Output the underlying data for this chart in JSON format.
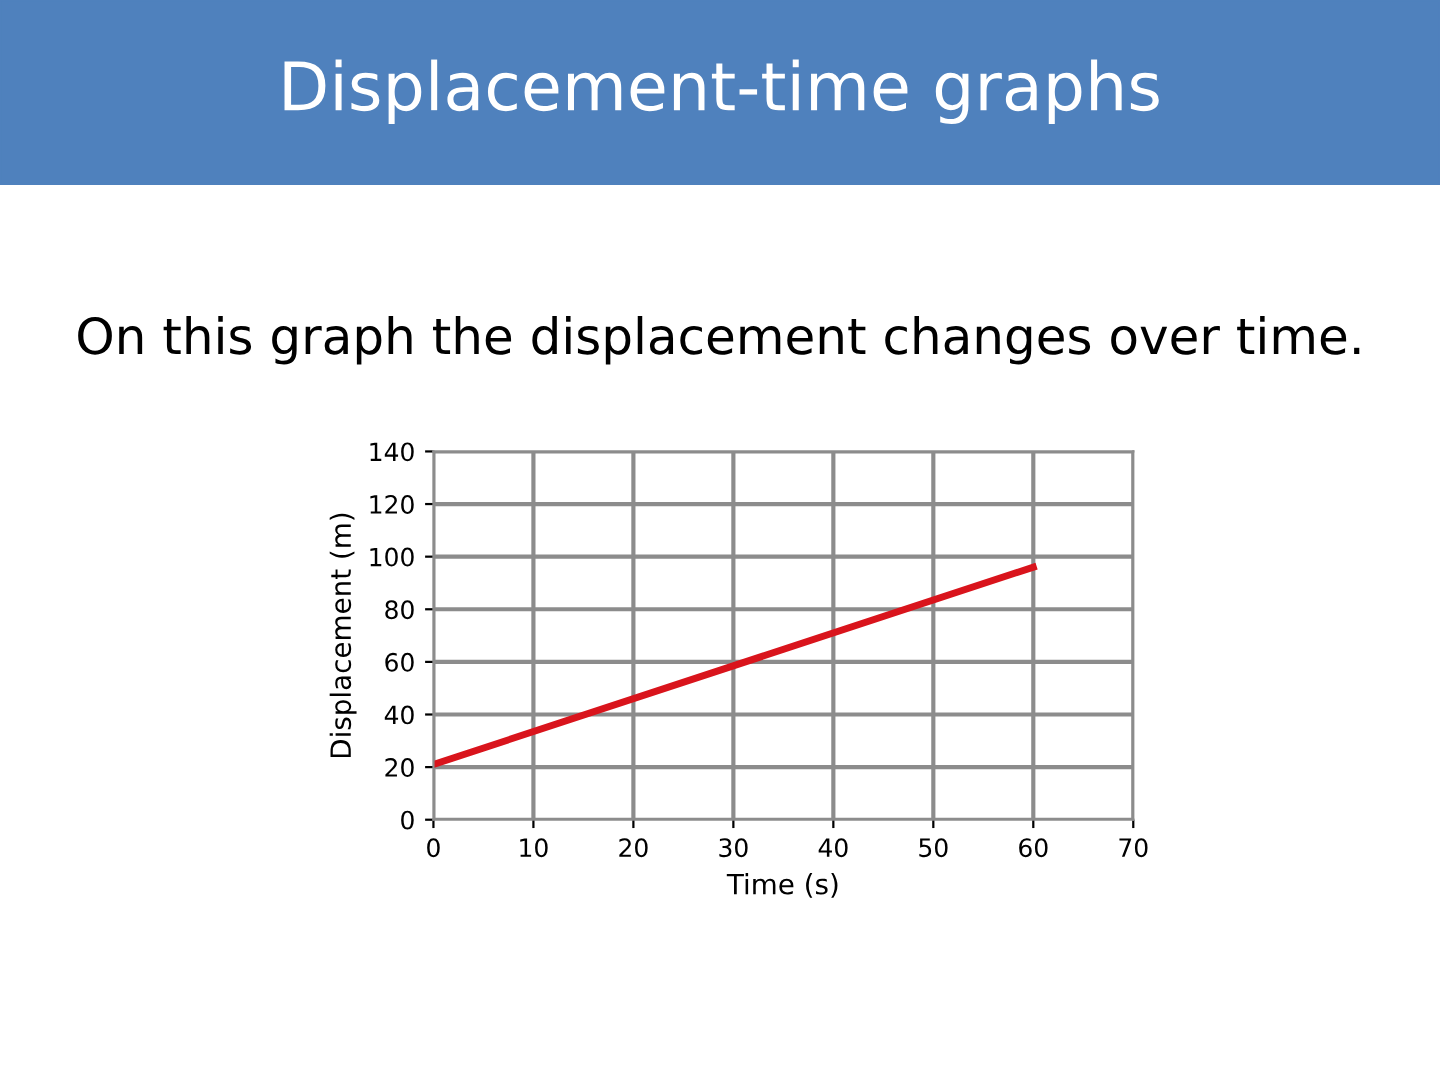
{
  "chart_data": {
    "type": "line",
    "title": "Displacement-time graphs",
    "subtitle": "On this graph the displacement changes over time.",
    "xlabel": "Time (s)",
    "ylabel": "Displacement (m)",
    "series": [
      {
        "color": "#d9141c",
        "x": [
          0,
          60
        ],
        "values": [
          21,
          96
        ]
      }
    ],
    "xlim": [
      0,
      70
    ],
    "xticks": [
      0,
      10,
      20,
      30,
      40,
      50,
      60,
      70
    ],
    "ylim": [
      0,
      140
    ],
    "yticks": [
      0,
      20,
      40,
      60,
      80,
      100,
      120,
      140
    ],
    "grid": true,
    "marker": "none",
    "line_style": "solid"
  }
}
